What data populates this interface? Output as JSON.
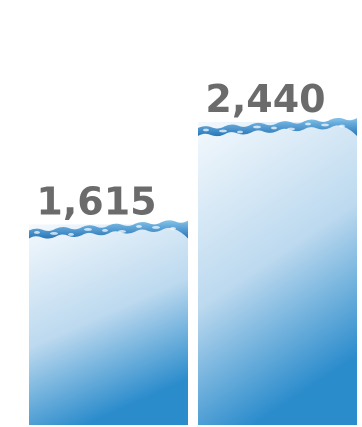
{
  "chart_data": {
    "type": "bar",
    "categories": [
      "",
      ""
    ],
    "values": [
      1615,
      2440
    ],
    "value_labels": [
      "1,615",
      "2,440"
    ],
    "title": "",
    "xlabel": "",
    "ylabel": "",
    "ylim": [
      0,
      2440
    ],
    "grid": false,
    "legend": "none",
    "bar_style": "water-filled glass",
    "colors": {
      "water_top": "#f4f9fd",
      "water_mid": "#bcd9ef",
      "water_bottom": "#2b8ccc",
      "wave_dark": "#1e6fb3",
      "wave_light": "#7ec0ea",
      "label": "#6b6b6b"
    }
  }
}
